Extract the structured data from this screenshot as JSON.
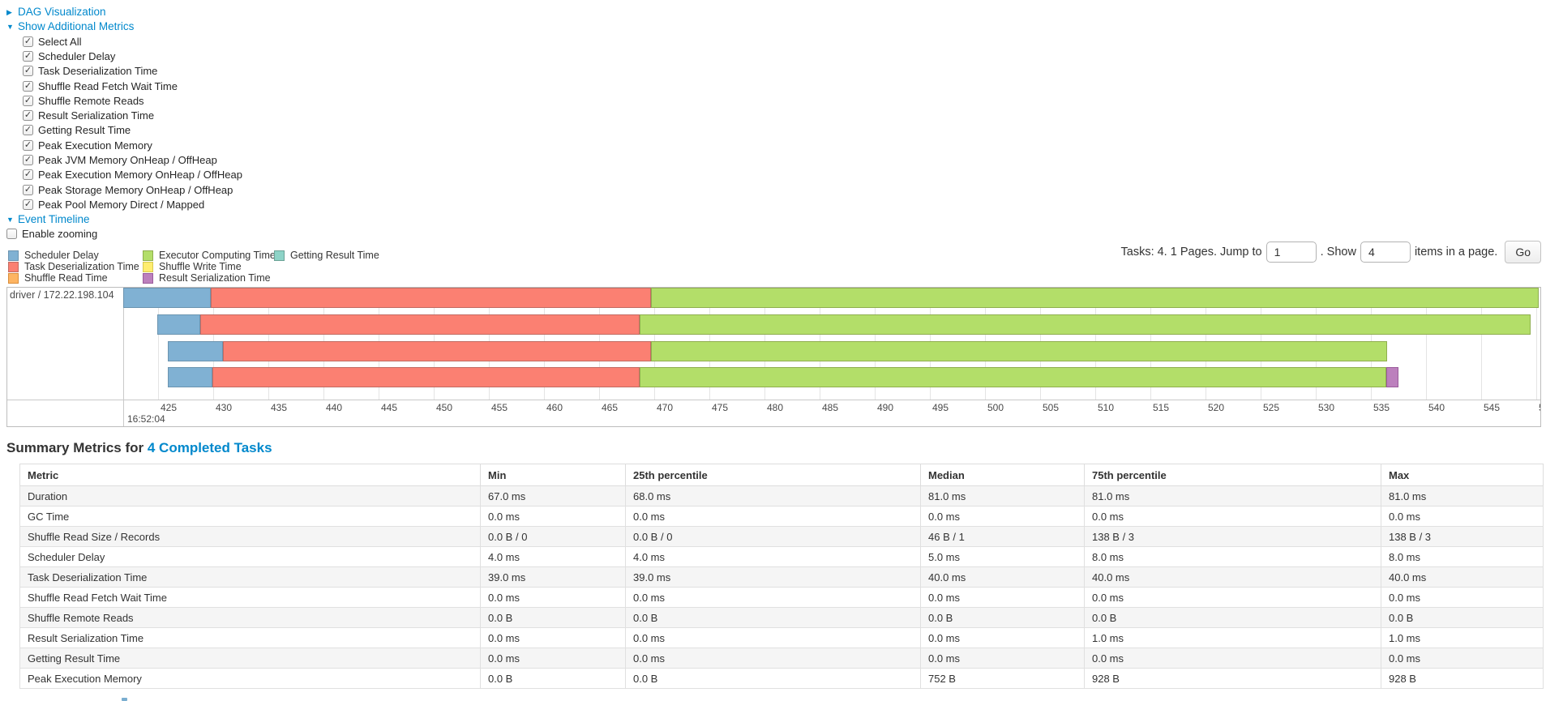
{
  "theme": {
    "link_color": "#0088cc"
  },
  "controls": {
    "dag_label": "DAG Visualization",
    "metrics_label": "Show Additional Metrics",
    "metric_checkboxes": [
      {
        "label": "Select All",
        "checked": true
      },
      {
        "label": "Scheduler Delay",
        "checked": true
      },
      {
        "label": "Task Deserialization Time",
        "checked": true
      },
      {
        "label": "Shuffle Read Fetch Wait Time",
        "checked": true
      },
      {
        "label": "Shuffle Remote Reads",
        "checked": true
      },
      {
        "label": "Result Serialization Time",
        "checked": true
      },
      {
        "label": "Getting Result Time",
        "checked": true
      },
      {
        "label": "Peak Execution Memory",
        "checked": true
      },
      {
        "label": "Peak JVM Memory OnHeap / OffHeap",
        "checked": true
      },
      {
        "label": "Peak Execution Memory OnHeap / OffHeap",
        "checked": true
      },
      {
        "label": "Peak Storage Memory OnHeap / OffHeap",
        "checked": true
      },
      {
        "label": "Peak Pool Memory Direct / Mapped",
        "checked": true
      }
    ],
    "timeline_label": "Event Timeline",
    "zoom_checkbox": {
      "label": "Enable zooming",
      "checked": false
    }
  },
  "pagination": {
    "prefix": "Tasks: 4. 1 Pages. Jump to",
    "jump_value": "1",
    "show_label": ". Show",
    "show_value": "4",
    "suffix": "items in a page.",
    "go_label": "Go"
  },
  "legend": {
    "columns": [
      [
        {
          "label": "Scheduler Delay",
          "color": "#80B1D3",
          "border": "#6B94B0"
        },
        {
          "label": "Task Deserialization Time",
          "color": "#FB8072",
          "border": "#C26B62"
        },
        {
          "label": "Shuffle Read Time",
          "color": "#FDB462",
          "border": "#D98D3B"
        }
      ],
      [
        {
          "label": "Executor Computing Time",
          "color": "#B3DE69",
          "border": "#8FAE4E"
        },
        {
          "label": "Shuffle Write Time",
          "color": "#FFED6F",
          "border": "#D8C94F"
        },
        {
          "label": "Result Serialization Time",
          "color": "#BC80BD",
          "border": "#9A5B9B"
        }
      ],
      [
        {
          "label": "Getting Result Time",
          "color": "#8DD3C7",
          "border": "#6BA296"
        }
      ]
    ]
  },
  "timeline": {
    "type": "timeline",
    "group_label": "driver / 172.22.198.104",
    "axis": {
      "min": 425,
      "max": 550,
      "step": 5,
      "base_time_label": "16:52:04"
    },
    "tasks": [
      {
        "segments": [
          {
            "name": "Scheduler Delay",
            "color": "#80B1D3",
            "border": "#6B94B0",
            "start": 421.8,
            "end": 429.8
          },
          {
            "name": "Task Deserialization Time",
            "color": "#FB8072",
            "border": "#C26B62",
            "start": 429.8,
            "end": 469.7
          },
          {
            "name": "Executor Computing Time",
            "color": "#B3DE69",
            "border": "#8FAE4E",
            "start": 469.7,
            "end": 550.2
          }
        ]
      },
      {
        "segments": [
          {
            "name": "Scheduler Delay",
            "color": "#80B1D3",
            "border": "#6B94B0",
            "start": 424.9,
            "end": 428.8
          },
          {
            "name": "Task Deserialization Time",
            "color": "#FB8072",
            "border": "#C26B62",
            "start": 428.8,
            "end": 468.7
          },
          {
            "name": "Executor Computing Time",
            "color": "#B3DE69",
            "border": "#8FAE4E",
            "start": 468.7,
            "end": 549.5
          }
        ]
      },
      {
        "segments": [
          {
            "name": "Scheduler Delay",
            "color": "#80B1D3",
            "border": "#6B94B0",
            "start": 425.9,
            "end": 430.9
          },
          {
            "name": "Task Deserialization Time",
            "color": "#FB8072",
            "border": "#C26B62",
            "start": 430.9,
            "end": 469.7
          },
          {
            "name": "Executor Computing Time",
            "color": "#B3DE69",
            "border": "#8FAE4E",
            "start": 469.7,
            "end": 536.5
          }
        ]
      },
      {
        "segments": [
          {
            "name": "Scheduler Delay",
            "color": "#80B1D3",
            "border": "#6B94B0",
            "start": 425.9,
            "end": 429.9
          },
          {
            "name": "Task Deserialization Time",
            "color": "#FB8072",
            "border": "#C26B62",
            "start": 429.9,
            "end": 468.7
          },
          {
            "name": "Executor Computing Time",
            "color": "#B3DE69",
            "border": "#8FAE4E",
            "start": 468.7,
            "end": 536.4
          },
          {
            "name": "Result Serialization Time",
            "color": "#BC80BD",
            "border": "#9A5B9B",
            "start": 536.4,
            "end": 537.5
          }
        ]
      }
    ]
  },
  "summary": {
    "title_prefix": "Summary Metrics for",
    "title_link": "4 Completed Tasks",
    "columns": [
      "Metric",
      "Min",
      "25th percentile",
      "Median",
      "75th percentile",
      "Max"
    ],
    "rows": [
      [
        "Duration",
        "67.0 ms",
        "68.0 ms",
        "81.0 ms",
        "81.0 ms",
        "81.0 ms"
      ],
      [
        "GC Time",
        "0.0 ms",
        "0.0 ms",
        "0.0 ms",
        "0.0 ms",
        "0.0 ms"
      ],
      [
        "Shuffle Read Size / Records",
        "0.0 B / 0",
        "0.0 B / 0",
        "46 B / 1",
        "138 B / 3",
        "138 B / 3"
      ],
      [
        "Scheduler Delay",
        "4.0 ms",
        "4.0 ms",
        "5.0 ms",
        "8.0 ms",
        "8.0 ms"
      ],
      [
        "Task Deserialization Time",
        "39.0 ms",
        "39.0 ms",
        "40.0 ms",
        "40.0 ms",
        "40.0 ms"
      ],
      [
        "Shuffle Read Fetch Wait Time",
        "0.0 ms",
        "0.0 ms",
        "0.0 ms",
        "0.0 ms",
        "0.0 ms"
      ],
      [
        "Shuffle Remote Reads",
        "0.0 B",
        "0.0 B",
        "0.0 B",
        "0.0 B",
        "0.0 B"
      ],
      [
        "Result Serialization Time",
        "0.0 ms",
        "0.0 ms",
        "0.0 ms",
        "1.0 ms",
        "1.0 ms"
      ],
      [
        "Getting Result Time",
        "0.0 ms",
        "0.0 ms",
        "0.0 ms",
        "0.0 ms",
        "0.0 ms"
      ],
      [
        "Peak Execution Memory",
        "0.0 B",
        "0.0 B",
        "752 B",
        "928 B",
        "928 B"
      ]
    ]
  }
}
